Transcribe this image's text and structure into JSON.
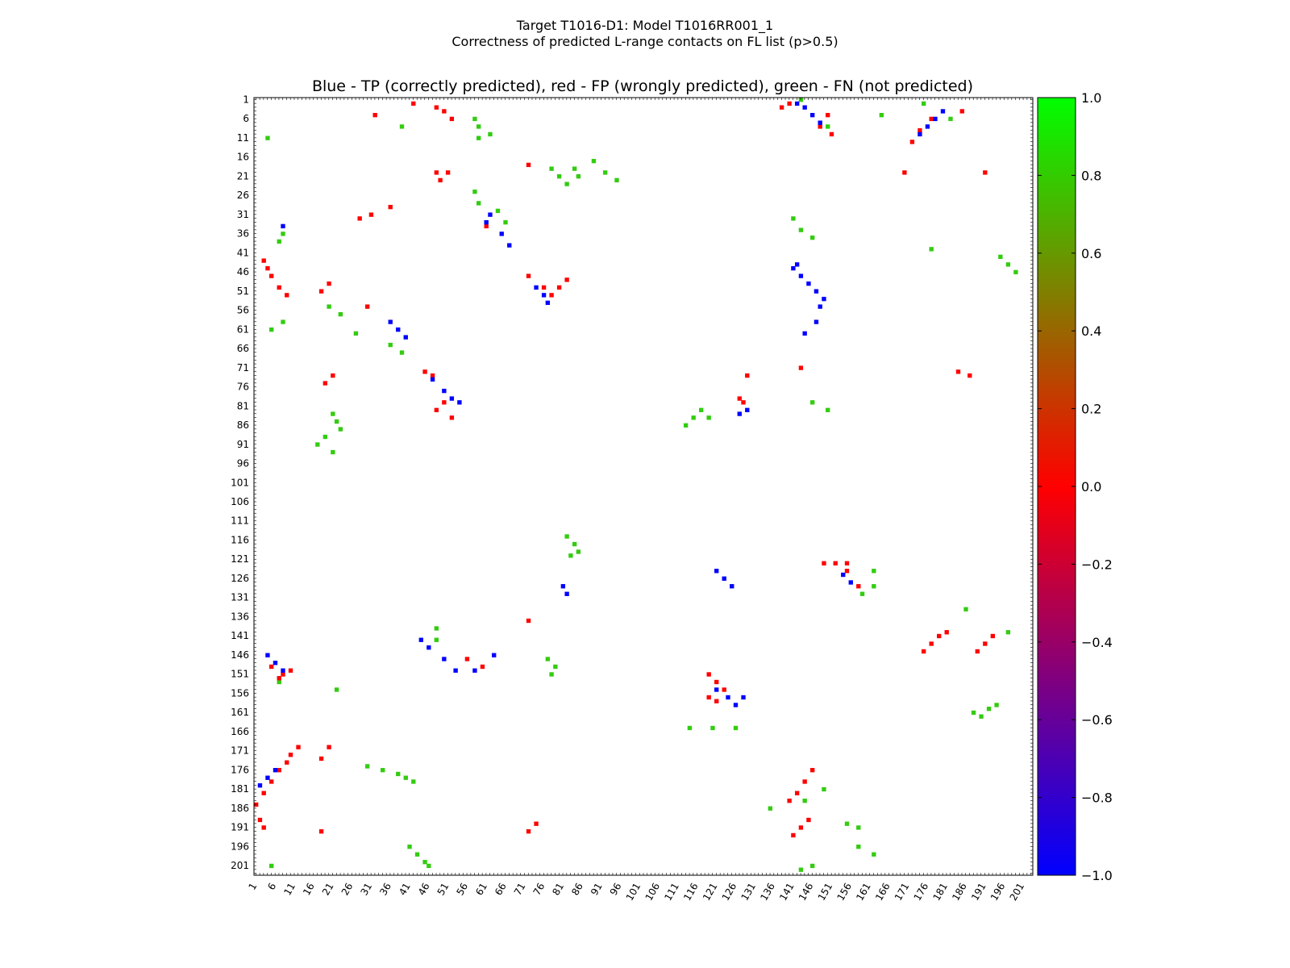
{
  "window": {
    "title_line1": "Target T1016-D1: Model T1016RR001_1",
    "title_line2": "Correctness of predicted L-range contacts on FL list (p>0.5)"
  },
  "chart_data": {
    "type": "heatmap",
    "title": "Blue - TP (correctly predicted), red - FP (wrongly predicted), green - FN (not predicted)",
    "xlabel": "",
    "ylabel": "",
    "residue_range": [
      1,
      203
    ],
    "x_ticks": [
      1,
      6,
      11,
      16,
      21,
      26,
      31,
      36,
      41,
      46,
      51,
      56,
      61,
      66,
      71,
      76,
      81,
      86,
      91,
      96,
      101,
      106,
      111,
      116,
      121,
      126,
      131,
      136,
      141,
      146,
      151,
      156,
      161,
      166,
      171,
      176,
      181,
      186,
      191,
      196,
      201
    ],
    "y_ticks": [
      1,
      6,
      11,
      16,
      21,
      26,
      31,
      36,
      41,
      46,
      51,
      56,
      61,
      66,
      71,
      76,
      81,
      86,
      91,
      96,
      101,
      106,
      111,
      116,
      121,
      126,
      131,
      136,
      141,
      146,
      151,
      156,
      161,
      166,
      171,
      176,
      181,
      186,
      191,
      196,
      201
    ],
    "y_inverted": true,
    "colorbar": {
      "range": [
        -1.0,
        1.0
      ],
      "ticks": [
        "1.0",
        "0.8",
        "0.6",
        "0.4",
        "0.2",
        "0.0",
        "−0.2",
        "−0.4",
        "−0.6",
        "−0.8",
        "−1.0"
      ],
      "colors": [
        "#0000ff",
        "#ff0000",
        "#00ff00"
      ]
    },
    "legend": {
      "TP": "#0000ff",
      "FP": "#ff0000",
      "FN": "#33cc11"
    },
    "contacts": {
      "TP": [
        [
          2,
          142
        ],
        [
          3,
          144
        ],
        [
          5,
          146
        ],
        [
          7,
          148
        ],
        [
          4,
          180
        ],
        [
          6,
          178
        ],
        [
          8,
          176
        ],
        [
          10,
          174
        ],
        [
          45,
          141
        ],
        [
          47,
          143
        ],
        [
          49,
          145
        ],
        [
          51,
          147
        ],
        [
          53,
          149
        ],
        [
          55,
          148
        ],
        [
          59,
          147
        ],
        [
          62,
          144
        ],
        [
          44,
          142
        ],
        [
          34,
          8
        ],
        [
          31,
          62
        ],
        [
          33,
          61
        ],
        [
          36,
          65
        ],
        [
          39,
          67
        ],
        [
          59,
          36
        ],
        [
          61,
          38
        ],
        [
          63,
          40
        ],
        [
          74,
          47
        ],
        [
          77,
          50
        ],
        [
          79,
          52
        ],
        [
          80,
          54
        ],
        [
          50,
          74
        ],
        [
          52,
          76
        ],
        [
          54,
          77
        ],
        [
          146,
          4
        ],
        [
          148,
          6
        ],
        [
          150,
          8
        ],
        [
          178,
          4
        ],
        [
          180,
          2
        ],
        [
          176,
          6
        ],
        [
          144,
          46
        ],
        [
          147,
          50
        ],
        [
          150,
          53
        ],
        [
          142,
          44
        ],
        [
          150,
          58
        ],
        [
          146,
          63
        ],
        [
          124,
          121
        ],
        [
          126,
          123
        ],
        [
          128,
          125
        ],
        [
          130,
          82
        ],
        [
          128,
          81
        ],
        [
          155,
          121
        ],
        [
          157,
          124
        ],
        [
          159,
          126
        ],
        [
          157,
          128
        ],
        [
          125,
          154
        ],
        [
          127,
          156
        ],
        [
          83,
          127
        ],
        [
          82,
          129
        ]
      ],
      "FP": [
        [
          2,
          42
        ],
        [
          3,
          48
        ],
        [
          4,
          50
        ],
        [
          6,
          52
        ],
        [
          3,
          138
        ],
        [
          2,
          140
        ],
        [
          5,
          150
        ],
        [
          8,
          148
        ],
        [
          10,
          151
        ],
        [
          4,
          185
        ],
        [
          6,
          177
        ],
        [
          9,
          174
        ],
        [
          12,
          172
        ],
        [
          5,
          32
        ],
        [
          20,
          51
        ],
        [
          22,
          49
        ],
        [
          18,
          72
        ],
        [
          20,
          48
        ],
        [
          20,
          170
        ],
        [
          20,
          191
        ],
        [
          43,
          3
        ],
        [
          45,
          4
        ],
        [
          47,
          5
        ],
        [
          50,
          7
        ],
        [
          52,
          9
        ],
        [
          51,
          18
        ],
        [
          49,
          20
        ],
        [
          55,
          30
        ],
        [
          47,
          72
        ],
        [
          50,
          76
        ],
        [
          52,
          78
        ],
        [
          48,
          82
        ],
        [
          50,
          80
        ],
        [
          75,
          19
        ],
        [
          73,
          21
        ],
        [
          82,
          48
        ],
        [
          80,
          50
        ],
        [
          84,
          52
        ],
        [
          72,
          45
        ],
        [
          73,
          47
        ],
        [
          73,
          129
        ],
        [
          71,
          143
        ],
        [
          72,
          184
        ],
        [
          73,
          187
        ],
        [
          79,
          127
        ],
        [
          80,
          128
        ],
        [
          149,
          5
        ],
        [
          151,
          8
        ],
        [
          150,
          10
        ],
        [
          152,
          7
        ],
        [
          170,
          12
        ],
        [
          172,
          10
        ],
        [
          174,
          9
        ],
        [
          176,
          7
        ],
        [
          179,
          5
        ],
        [
          182,
          3
        ],
        [
          185,
          1
        ],
        [
          170,
          20
        ],
        [
          173,
          18
        ],
        [
          176,
          146
        ],
        [
          179,
          144
        ],
        [
          182,
          142
        ],
        [
          184,
          140
        ],
        [
          189,
          145
        ],
        [
          191,
          143
        ],
        [
          193,
          141
        ],
        [
          189,
          2
        ],
        [
          191,
          3
        ],
        [
          190,
          74
        ],
        [
          192,
          72
        ],
        [
          192,
          18
        ],
        [
          145,
          175
        ],
        [
          143,
          177
        ],
        [
          141,
          179
        ],
        [
          140,
          181
        ],
        [
          145,
          189
        ],
        [
          143,
          191
        ],
        [
          141,
          193
        ],
        [
          137,
          72
        ],
        [
          147,
          56
        ],
        [
          149,
          60
        ],
        [
          151,
          119
        ],
        [
          153,
          121
        ],
        [
          155,
          123
        ],
        [
          157,
          119
        ],
        [
          158,
          121
        ],
        [
          122,
          149
        ],
        [
          122,
          152
        ],
        [
          122,
          155
        ],
        [
          124,
          155
        ],
        [
          128,
          158
        ],
        [
          32,
          28
        ],
        [
          34,
          61
        ],
        [
          31,
          31
        ],
        [
          29,
          36
        ]
      ],
      "FN": [
        [
          1,
          143
        ],
        [
          2,
          175
        ],
        [
          6,
          182
        ],
        [
          8,
          39
        ],
        [
          10,
          62
        ],
        [
          11,
          59
        ],
        [
          19,
          78
        ],
        [
          21,
          80
        ],
        [
          23,
          82
        ],
        [
          21,
          85
        ],
        [
          19,
          84
        ],
        [
          17,
          89
        ],
        [
          20,
          92
        ],
        [
          22,
          95
        ],
        [
          25,
          58
        ],
        [
          28,
          59
        ],
        [
          30,
          64
        ],
        [
          33,
          66
        ],
        [
          36,
          8
        ],
        [
          38,
          7
        ],
        [
          40,
          177
        ],
        [
          42,
          195
        ],
        [
          44,
          197
        ],
        [
          46,
          199
        ],
        [
          55,
          20
        ],
        [
          57,
          23
        ],
        [
          59,
          8
        ],
        [
          61,
          5
        ],
        [
          62,
          27
        ],
        [
          65,
          36
        ],
        [
          67,
          39
        ],
        [
          80,
          146
        ],
        [
          82,
          150
        ],
        [
          83,
          21
        ],
        [
          85,
          22
        ],
        [
          87,
          23
        ],
        [
          89,
          19
        ],
        [
          91,
          17
        ],
        [
          93,
          21
        ],
        [
          86,
          113
        ],
        [
          84,
          115
        ],
        [
          82,
          117
        ],
        [
          84,
          119
        ],
        [
          115,
          82
        ],
        [
          117,
          84
        ],
        [
          119,
          85
        ],
        [
          120,
          83
        ],
        [
          124,
          162
        ],
        [
          128,
          162
        ],
        [
          130,
          159
        ],
        [
          142,
          48
        ],
        [
          139,
          48
        ],
        [
          147,
          77
        ],
        [
          149,
          79
        ],
        [
          151,
          78
        ],
        [
          153,
          7
        ],
        [
          155,
          22
        ],
        [
          165,
          114
        ],
        [
          165,
          120
        ],
        [
          165,
          126
        ],
        [
          175,
          30
        ],
        [
          176,
          34
        ],
        [
          177,
          38
        ],
        [
          178,
          40
        ],
        [
          179,
          42
        ],
        [
          196,
          41
        ],
        [
          198,
          43
        ],
        [
          200,
          45
        ],
        [
          201,
          46
        ],
        [
          198,
          162
        ],
        [
          196,
          158
        ],
        [
          191,
          158
        ],
        [
          190,
          155
        ],
        [
          181,
          149
        ],
        [
          184,
          144
        ],
        [
          186,
          135
        ],
        [
          161,
          188
        ],
        [
          162,
          190
        ],
        [
          159,
          194
        ],
        [
          160,
          192
        ],
        [
          140,
          197
        ],
        [
          134,
          186
        ],
        [
          202,
          143
        ],
        [
          201,
          146
        ],
        [
          201,
          5
        ],
        [
          5,
          164
        ],
        [
          8,
          150
        ],
        [
          11,
          4
        ],
        [
          32,
          141
        ],
        [
          35,
          143
        ],
        [
          37,
          146
        ],
        [
          6,
          58
        ],
        [
          8,
          59
        ]
      ]
    }
  }
}
